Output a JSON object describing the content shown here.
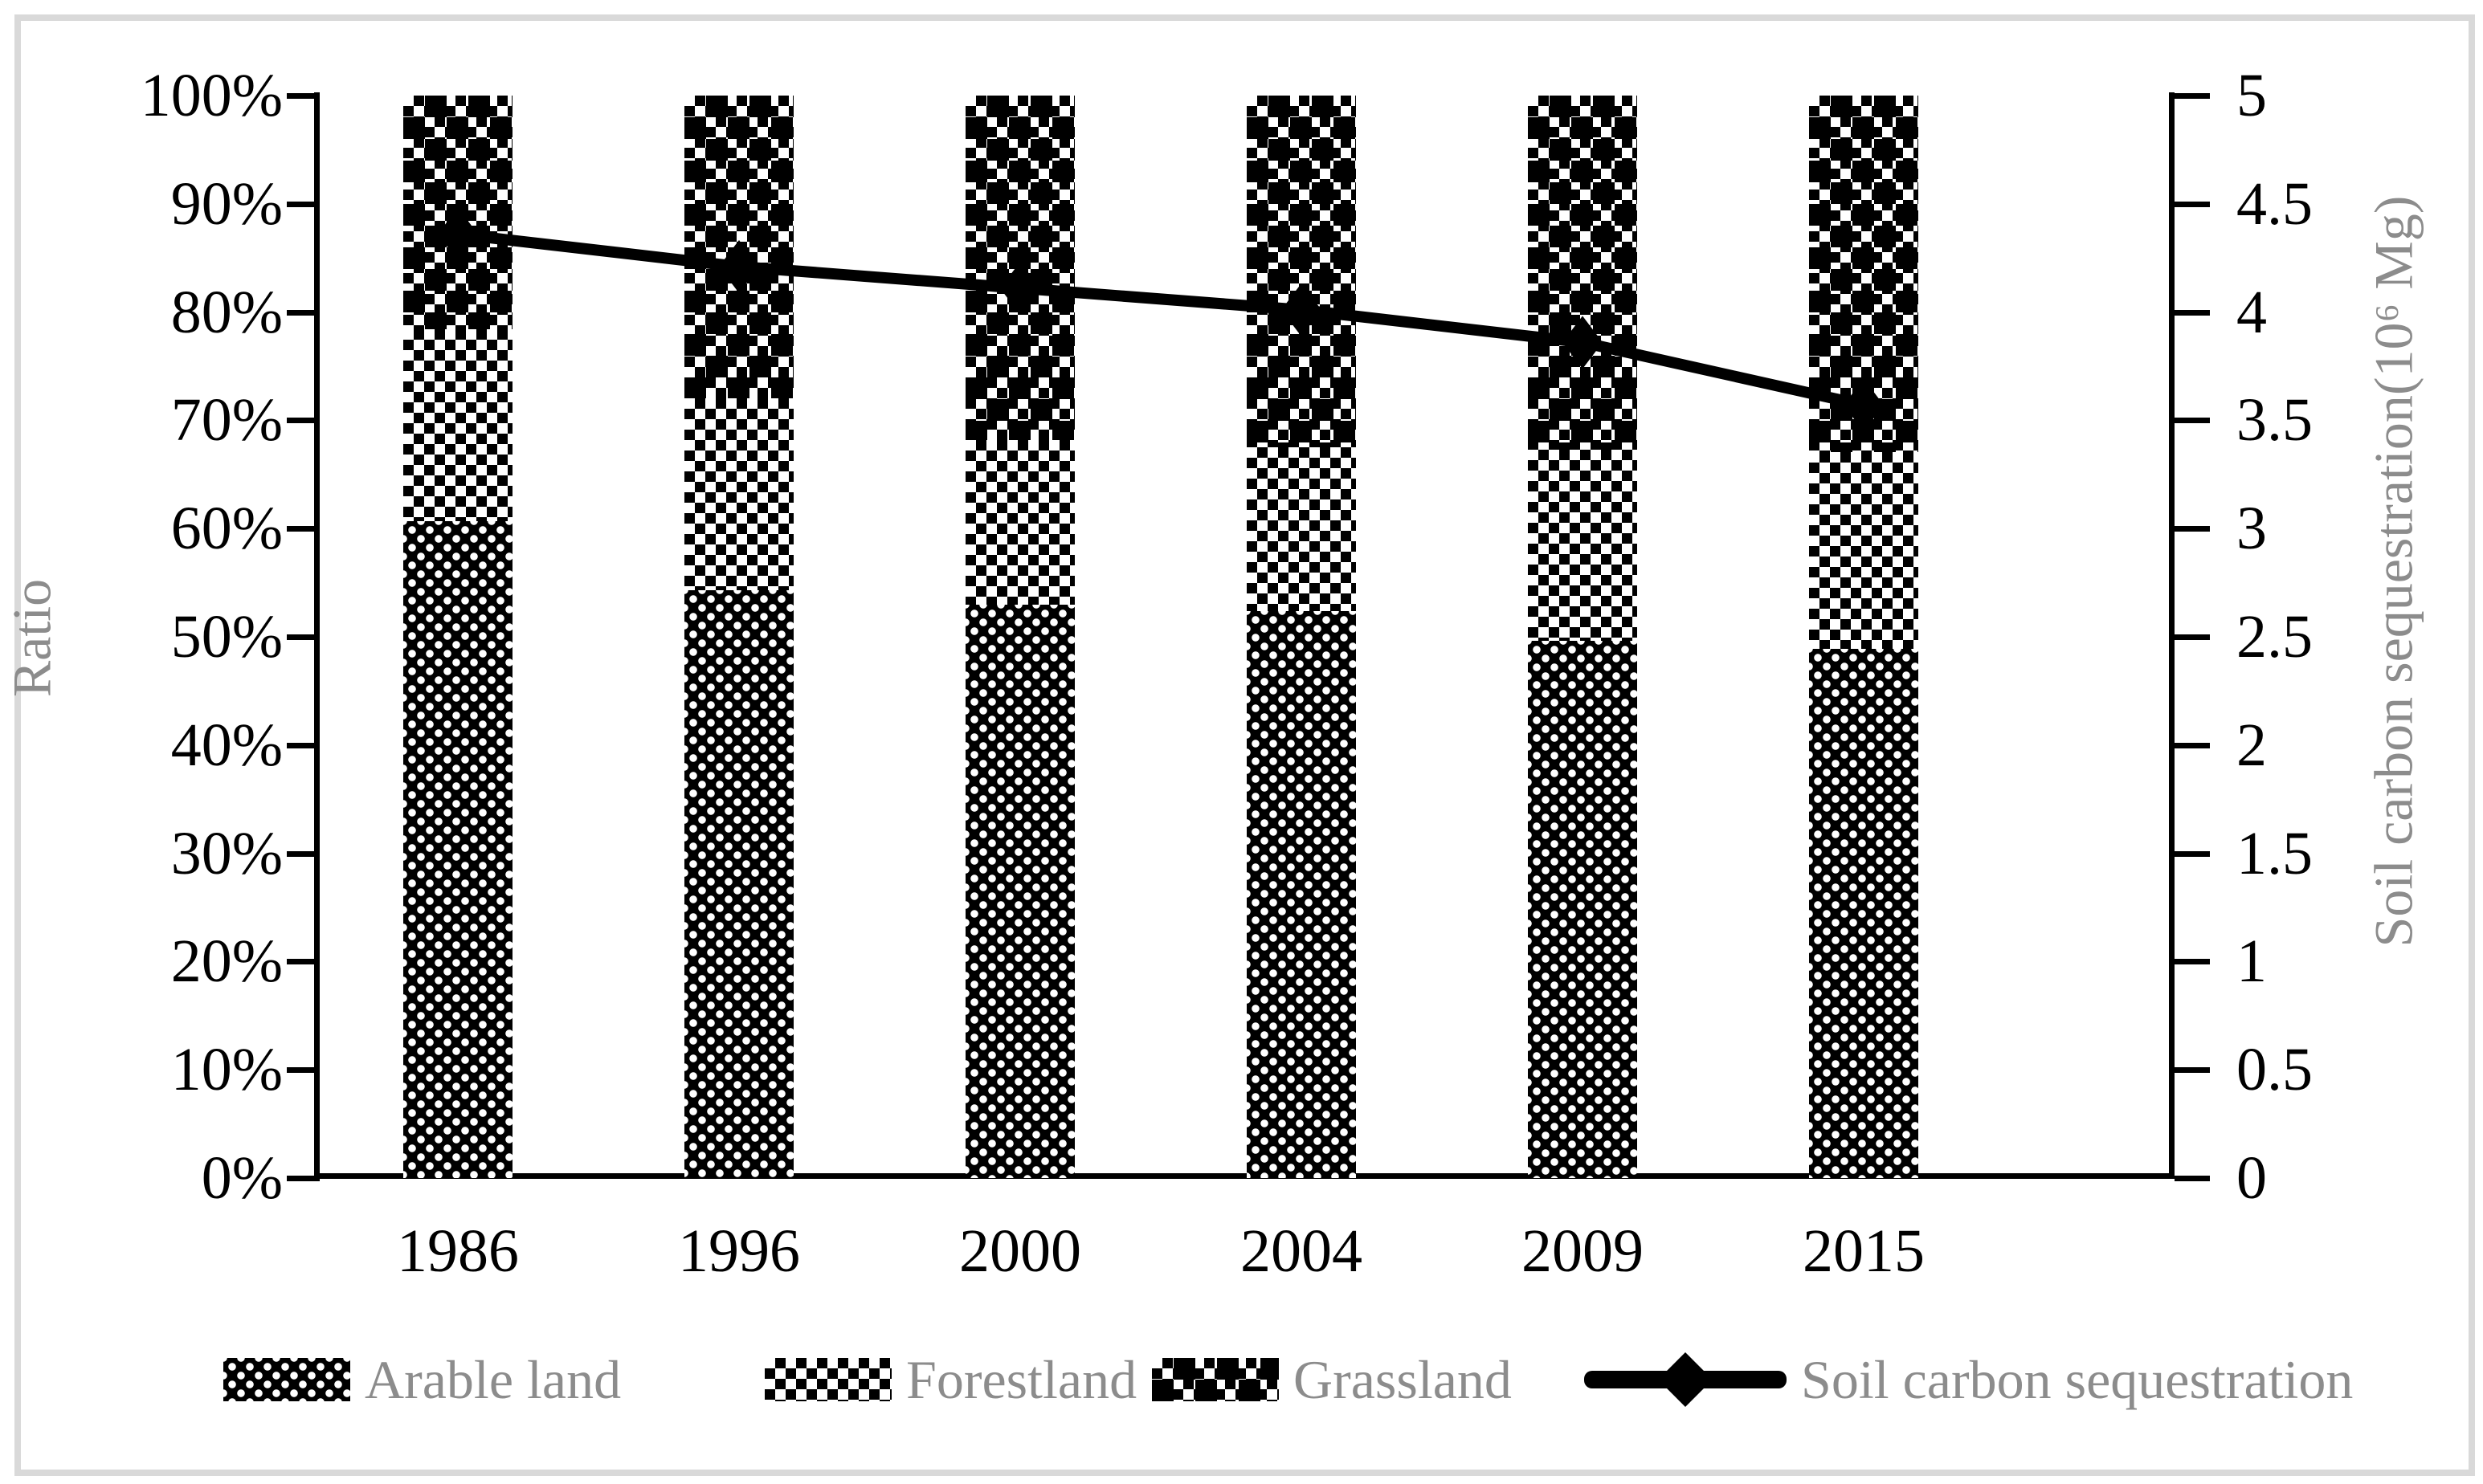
{
  "chart_data": {
    "type": "bar-line-combo",
    "bar_type": "stacked-100-percent",
    "categories": [
      "1986",
      "1996",
      "2000",
      "2004",
      "2009",
      "2015"
    ],
    "series": [
      {
        "name": "Arable land",
        "type": "bar",
        "axis": "left",
        "pattern": "dotted-black",
        "values": [
          60.7,
          54.3,
          53.0,
          52.4,
          49.6,
          48.9
        ]
      },
      {
        "name": "Forestland",
        "type": "bar",
        "axis": "left",
        "pattern": "fine-checker",
        "values": [
          17.7,
          17.7,
          15.2,
          15.1,
          17.7,
          18.2
        ]
      },
      {
        "name": "Grassland",
        "type": "bar",
        "axis": "left",
        "pattern": "big-checker",
        "values": [
          21.6,
          28.0,
          31.8,
          32.5,
          32.7,
          32.9
        ]
      },
      {
        "name": "Soil carbon sequestration",
        "type": "line",
        "axis": "right",
        "marker": "diamond",
        "color": "#000000",
        "values": [
          4.36,
          4.21,
          4.11,
          4.01,
          3.86,
          3.57
        ]
      }
    ],
    "left_axis": {
      "label": "Ratio",
      "min": 0,
      "max": 100,
      "ticks": [
        "0%",
        "10%",
        "20%",
        "30%",
        "40%",
        "50%",
        "60%",
        "70%",
        "80%",
        "90%",
        "100%"
      ]
    },
    "right_axis": {
      "label": "Soil carbon sequestration(10⁶ Mg)",
      "min": 0,
      "max": 5,
      "ticks": [
        "0",
        "0.5",
        "1",
        "1.5",
        "2",
        "2.5",
        "3",
        "3.5",
        "4",
        "4.5",
        "5"
      ]
    },
    "grid": "off",
    "legend_position": "bottom"
  },
  "legend": {
    "items": [
      {
        "label": "Arable land",
        "swatch": "dotted-black"
      },
      {
        "label": "Forestland",
        "swatch": "fine-checker"
      },
      {
        "label": "Grassland",
        "swatch": "big-checker"
      },
      {
        "label": "Soil carbon sequestration",
        "swatch": "line-diamond"
      }
    ]
  },
  "colors": {
    "ink": "#000000",
    "axis_title_gray": "#8c8c8c",
    "frame_gray": "#d9d9d9",
    "background": "#ffffff"
  }
}
